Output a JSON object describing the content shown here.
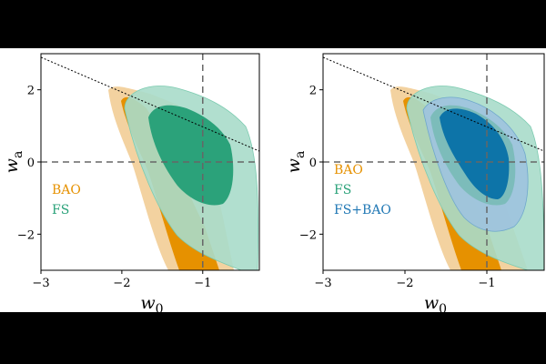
{
  "chart_data": [
    {
      "type": "contour",
      "xlabel": "w0",
      "ylabel": "wa",
      "xlim": [
        -3,
        -0.3
      ],
      "ylim": [
        -3,
        3
      ],
      "xticks": [
        -3,
        -2,
        -1
      ],
      "yticks": [
        -2,
        0,
        2
      ],
      "tick_labels": {
        "x": [
          "−3",
          "−2",
          "−1"
        ],
        "y": [
          "−2",
          "0",
          "2"
        ]
      },
      "reference_lines": {
        "vertical_x": -1,
        "horizontal_y": 0,
        "style": "dashed"
      },
      "boundary_line": {
        "style": "dotted",
        "from": [
          -3,
          2.9
        ],
        "to": [
          -0.3,
          0.3
        ]
      },
      "legend": {
        "position": "bottom-left"
      },
      "series": [
        {
          "name": "BAO",
          "color": "#E69100"
        },
        {
          "name": "FS",
          "color": "#2BA27A"
        }
      ]
    },
    {
      "type": "contour",
      "xlabel": "w0",
      "ylabel": "wa",
      "xlim": [
        -3,
        -0.3
      ],
      "ylim": [
        -3,
        3
      ],
      "xticks": [
        -3,
        -2,
        -1
      ],
      "yticks": [
        -2,
        0,
        2
      ],
      "tick_labels": {
        "x": [
          "−3",
          "−2",
          "−1"
        ],
        "y": [
          "−2",
          "0",
          "2"
        ]
      },
      "reference_lines": {
        "vertical_x": -1,
        "horizontal_y": 0,
        "style": "dashed"
      },
      "boundary_line": {
        "style": "dotted",
        "from": [
          -3,
          2.9
        ],
        "to": [
          -0.3,
          0.3
        ]
      },
      "legend": {
        "position": "bottom-left"
      },
      "series": [
        {
          "name": "BAO",
          "color": "#E69100"
        },
        {
          "name": "FS",
          "color": "#2BA27A"
        },
        {
          "name": "FS+BAO",
          "color": "#1F77B4"
        }
      ]
    }
  ],
  "axis_text": {
    "w_symbol": "w",
    "x_sub": "0",
    "y_sub": "a"
  },
  "colors": {
    "bao_outer": "#F3D2A0",
    "bao_inner": "#E69100",
    "fs_outer": "#A8DCCA",
    "fs_inner": "#2BA27A",
    "fsbao_outer": "#9FC4DD",
    "fsbao_inner": "#0D74A8"
  }
}
